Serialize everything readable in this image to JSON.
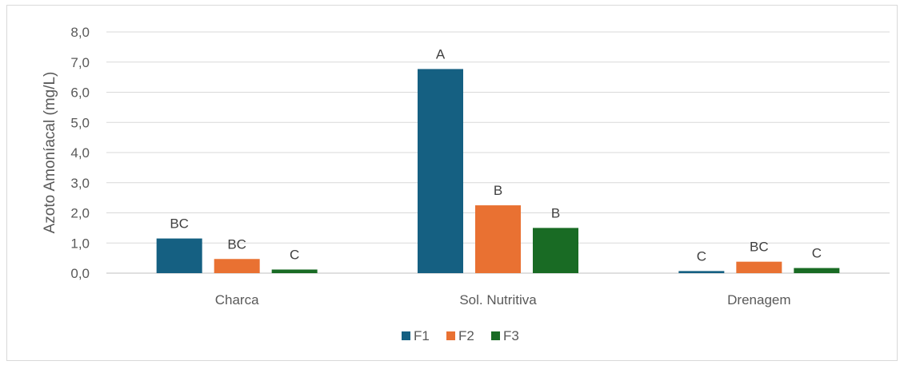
{
  "chart_data": {
    "type": "bar",
    "title": "",
    "xlabel": "",
    "ylabel": "Azoto Amoníacal (mg/L)",
    "ylim": [
      0,
      8
    ],
    "yticks": [
      "0,0",
      "1,0",
      "2,0",
      "3,0",
      "4,0",
      "5,0",
      "6,0",
      "7,0",
      "8,0"
    ],
    "grid": true,
    "legend_position": "bottom",
    "categories": [
      "Charca",
      "Sol. Nutritiva",
      "Drenagem"
    ],
    "series": [
      {
        "name": "F1",
        "color": "#156082",
        "values": [
          1.15,
          6.77,
          0.07
        ],
        "labels": [
          "BC",
          "A",
          "C"
        ]
      },
      {
        "name": "F2",
        "color": "#E97132",
        "values": [
          0.47,
          2.25,
          0.38
        ],
        "labels": [
          "BC",
          "B",
          "BC"
        ]
      },
      {
        "name": "F3",
        "color": "#196B24",
        "values": [
          0.12,
          1.5,
          0.17
        ],
        "labels": [
          "C",
          "B",
          "C"
        ]
      }
    ]
  }
}
